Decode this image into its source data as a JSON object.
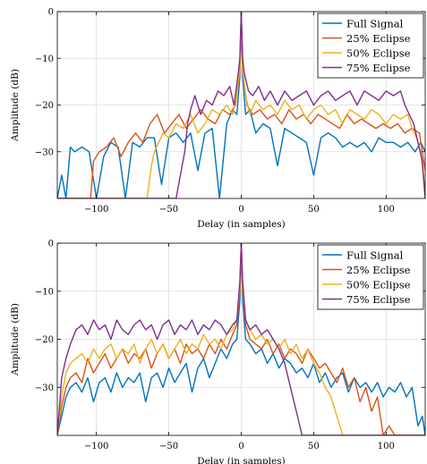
{
  "chart_data": [
    {
      "type": "line",
      "title": "",
      "xlabel": "Delay (in samples)",
      "ylabel": "Amplitude (dB)",
      "xlim": [
        -127,
        127
      ],
      "ylim": [
        -40,
        0
      ],
      "xticks": [
        -100,
        -50,
        0,
        50,
        100
      ],
      "yticks": [
        -30,
        -20,
        -10,
        0
      ],
      "grid": true,
      "legend_position": "top-right",
      "series": [
        {
          "name": "Full Signal",
          "color": "#0072BD",
          "x": [
            -127,
            -124,
            -121,
            -118,
            -115,
            -110,
            -105,
            -100,
            -95,
            -90,
            -85,
            -80,
            -75,
            -70,
            -65,
            -60,
            -55,
            -50,
            -45,
            -40,
            -35,
            -30,
            -25,
            -20,
            -15,
            -10,
            -6,
            -3,
            -1,
            0,
            1,
            3,
            6,
            10,
            15,
            20,
            25,
            30,
            35,
            40,
            45,
            50,
            55,
            60,
            65,
            70,
            75,
            80,
            85,
            90,
            95,
            100,
            105,
            110,
            115,
            120,
            124,
            127
          ],
          "y": [
            -40,
            -35,
            -40,
            -29,
            -30,
            -29,
            -30,
            -40,
            -31,
            -28,
            -29,
            -40,
            -28,
            -29,
            -27,
            -27,
            -37,
            -27,
            -26,
            -28,
            -26,
            -34,
            -26,
            -25,
            -40,
            -24,
            -21,
            -22,
            -14,
            0,
            -14,
            -22,
            -21,
            -26,
            -24,
            -25,
            -33,
            -25,
            -26,
            -27,
            -28,
            -35,
            -27,
            -26,
            -27,
            -29,
            -28,
            -29,
            -28,
            -30,
            -27,
            -28,
            -28,
            -29,
            -28,
            -30,
            -28,
            -30
          ]
        },
        {
          "name": "25% Eclipse",
          "color": "#D95319",
          "x": [
            -127,
            -118,
            -113,
            -108,
            -104,
            -102,
            -98,
            -93,
            -88,
            -83,
            -78,
            -73,
            -68,
            -63,
            -58,
            -53,
            -48,
            -43,
            -38,
            -33,
            -28,
            -23,
            -18,
            -13,
            -8,
            -4,
            -1,
            0,
            1,
            4,
            8,
            13,
            18,
            23,
            28,
            33,
            38,
            43,
            48,
            53,
            58,
            63,
            68,
            73,
            78,
            83,
            88,
            93,
            98,
            103,
            108,
            113,
            118,
            123,
            127
          ],
          "y": [
            -40,
            -40,
            -40,
            -40,
            -40,
            -32,
            -30,
            -29,
            -27,
            -31,
            -28,
            -26,
            -28,
            -24,
            -22,
            -26,
            -24,
            -22,
            -25,
            -23,
            -21,
            -23,
            -24,
            -21,
            -22,
            -20,
            -13,
            0,
            -13,
            -20,
            -22,
            -21,
            -23,
            -22,
            -24,
            -21,
            -23,
            -22,
            -24,
            -22,
            -23,
            -24,
            -25,
            -22,
            -24,
            -23,
            -24,
            -25,
            -24,
            -25,
            -24,
            -26,
            -25,
            -26,
            -34
          ]
        },
        {
          "name": "50% Eclipse",
          "color": "#EDB120",
          "x": [
            -127,
            -110,
            -90,
            -75,
            -68,
            -65,
            -62,
            -60,
            -57,
            -54,
            -50,
            -45,
            -40,
            -35,
            -30,
            -25,
            -20,
            -15,
            -10,
            -6,
            -3,
            -1,
            0,
            1,
            3,
            6,
            10,
            15,
            20,
            25,
            30,
            35,
            40,
            45,
            50,
            55,
            60,
            65,
            70,
            75,
            80,
            85,
            90,
            95,
            100,
            105,
            110,
            115,
            118,
            121,
            124,
            127
          ],
          "y": [
            -40,
            -40,
            -40,
            -40,
            -40,
            -40,
            -33,
            -30,
            -28,
            -26,
            -27,
            -24,
            -25,
            -22,
            -26,
            -24,
            -21,
            -22,
            -20,
            -22,
            -18,
            -12,
            0,
            -12,
            -18,
            -22,
            -19,
            -21,
            -20,
            -22,
            -19,
            -21,
            -20,
            -23,
            -21,
            -20,
            -22,
            -21,
            -24,
            -21,
            -22,
            -23,
            -21,
            -22,
            -24,
            -22,
            -23,
            -22,
            -25,
            -27,
            -30,
            -40
          ]
        },
        {
          "name": "75% Eclipse",
          "color": "#7E2F8E",
          "x": [
            -127,
            -80,
            -45,
            -42,
            -39,
            -37,
            -35,
            -32,
            -28,
            -24,
            -20,
            -16,
            -12,
            -8,
            -5,
            -2,
            -1,
            0,
            1,
            2,
            5,
            8,
            12,
            16,
            20,
            25,
            30,
            35,
            40,
            45,
            50,
            55,
            60,
            65,
            70,
            75,
            80,
            85,
            90,
            95,
            100,
            105,
            110,
            113,
            116,
            119,
            122,
            125,
            127
          ],
          "y": [
            -40,
            -40,
            -40,
            -35,
            -30,
            -24,
            -21,
            -18,
            -22,
            -19,
            -20,
            -17,
            -18,
            -16,
            -20,
            -13,
            -10,
            0,
            -10,
            -13,
            -17,
            -18,
            -16,
            -19,
            -17,
            -20,
            -17,
            -19,
            -18,
            -17,
            -20,
            -18,
            -17,
            -19,
            -18,
            -17,
            -20,
            -17,
            -18,
            -19,
            -17,
            -18,
            -17,
            -20,
            -22,
            -24,
            -28,
            -32,
            -40
          ]
        }
      ]
    },
    {
      "type": "line",
      "title": "",
      "xlabel": "Delay (in samples)",
      "ylabel": "Amplitude (dB)",
      "xlim": [
        -127,
        127
      ],
      "ylim": [
        -40,
        0
      ],
      "xticks": [
        -100,
        -50,
        0,
        50,
        100
      ],
      "yticks": [
        -30,
        -20,
        -10,
        0
      ],
      "grid": true,
      "legend_position": "top-right",
      "series": [
        {
          "name": "Full Signal",
          "color": "#0072BD",
          "x": [
            -127,
            -124,
            -121,
            -118,
            -114,
            -110,
            -106,
            -102,
            -98,
            -94,
            -90,
            -86,
            -82,
            -78,
            -74,
            -70,
            -66,
            -62,
            -58,
            -54,
            -50,
            -46,
            -42,
            -38,
            -34,
            -30,
            -26,
            -22,
            -18,
            -14,
            -10,
            -6,
            -3,
            -1,
            0,
            1,
            3,
            6,
            10,
            14,
            18,
            22,
            26,
            30,
            34,
            38,
            42,
            46,
            50,
            54,
            58,
            62,
            66,
            70,
            74,
            78,
            82,
            86,
            90,
            94,
            98,
            102,
            106,
            110,
            114,
            118,
            122,
            125,
            127
          ],
          "y": [
            -40,
            -36,
            -32,
            -30,
            -29,
            -31,
            -28,
            -33,
            -29,
            -28,
            -31,
            -27,
            -30,
            -28,
            -29,
            -27,
            -33,
            -28,
            -27,
            -30,
            -26,
            -29,
            -27,
            -25,
            -31,
            -26,
            -24,
            -28,
            -25,
            -22,
            -24,
            -21,
            -20,
            -12,
            0,
            -12,
            -20,
            -21,
            -23,
            -22,
            -25,
            -23,
            -26,
            -24,
            -25,
            -27,
            -26,
            -28,
            -25,
            -29,
            -27,
            -30,
            -28,
            -27,
            -31,
            -28,
            -30,
            -29,
            -31,
            -29,
            -32,
            -30,
            -31,
            -29,
            -32,
            -30,
            -38,
            -36,
            -40
          ]
        },
        {
          "name": "25% Eclipse",
          "color": "#D95319",
          "x": [
            -127,
            -124,
            -121,
            -118,
            -114,
            -110,
            -106,
            -102,
            -98,
            -94,
            -90,
            -86,
            -82,
            -78,
            -74,
            -70,
            -66,
            -62,
            -58,
            -54,
            -50,
            -46,
            -42,
            -38,
            -34,
            -30,
            -26,
            -22,
            -18,
            -14,
            -10,
            -6,
            -3,
            -1,
            0,
            1,
            3,
            6,
            10,
            14,
            18,
            22,
            26,
            30,
            34,
            38,
            42,
            46,
            50,
            54,
            58,
            62,
            66,
            70,
            74,
            78,
            82,
            86,
            90,
            94,
            98,
            102,
            106,
            110,
            114,
            118,
            122,
            127
          ],
          "y": [
            -40,
            -34,
            -30,
            -28,
            -27,
            -29,
            -24,
            -27,
            -25,
            -23,
            -26,
            -24,
            -22,
            -25,
            -23,
            -24,
            -22,
            -26,
            -23,
            -21,
            -24,
            -22,
            -25,
            -21,
            -23,
            -22,
            -24,
            -21,
            -23,
            -20,
            -22,
            -19,
            -17,
            -10,
            0,
            -10,
            -17,
            -20,
            -21,
            -22,
            -20,
            -23,
            -21,
            -24,
            -22,
            -23,
            -25,
            -22,
            -24,
            -26,
            -25,
            -27,
            -29,
            -26,
            -30,
            -28,
            -33,
            -30,
            -35,
            -32,
            -40,
            -38,
            -40,
            -40,
            -40,
            -40,
            -40,
            -40
          ]
        },
        {
          "name": "50% Eclipse",
          "color": "#EDB120",
          "x": [
            -127,
            -124,
            -121,
            -118,
            -114,
            -110,
            -106,
            -102,
            -98,
            -94,
            -90,
            -86,
            -82,
            -78,
            -74,
            -70,
            -66,
            -62,
            -58,
            -54,
            -50,
            -46,
            -42,
            -38,
            -34,
            -30,
            -26,
            -22,
            -18,
            -14,
            -10,
            -6,
            -3,
            -1,
            0,
            1,
            3,
            6,
            10,
            14,
            18,
            22,
            26,
            30,
            34,
            38,
            42,
            46,
            50,
            54,
            58,
            62,
            66,
            70,
            74,
            78,
            82,
            86,
            127
          ],
          "y": [
            -40,
            -32,
            -27,
            -25,
            -24,
            -23,
            -25,
            -22,
            -24,
            -22,
            -21,
            -24,
            -22,
            -23,
            -21,
            -25,
            -22,
            -20,
            -23,
            -21,
            -24,
            -22,
            -20,
            -23,
            -21,
            -22,
            -19,
            -21,
            -20,
            -22,
            -19,
            -18,
            -16,
            -9,
            0,
            -9,
            -16,
            -18,
            -20,
            -19,
            -21,
            -20,
            -22,
            -20,
            -23,
            -21,
            -24,
            -22,
            -25,
            -27,
            -30,
            -32,
            -36,
            -40,
            -40,
            -40,
            -40,
            -40,
            -40
          ]
        },
        {
          "name": "75% Eclipse",
          "color": "#7E2F8E",
          "x": [
            -127,
            -124,
            -121,
            -118,
            -114,
            -110,
            -106,
            -102,
            -98,
            -94,
            -90,
            -86,
            -82,
            -78,
            -74,
            -70,
            -66,
            -62,
            -58,
            -54,
            -50,
            -46,
            -42,
            -38,
            -34,
            -30,
            -26,
            -22,
            -18,
            -14,
            -10,
            -6,
            -3,
            -1,
            0,
            1,
            3,
            6,
            10,
            14,
            18,
            22,
            26,
            30,
            34,
            38,
            42,
            46,
            50,
            54,
            58,
            127
          ],
          "y": [
            -40,
            -28,
            -24,
            -21,
            -18,
            -17,
            -19,
            -16,
            -18,
            -17,
            -20,
            -16,
            -18,
            -19,
            -17,
            -16,
            -18,
            -17,
            -20,
            -17,
            -16,
            -19,
            -17,
            -18,
            -16,
            -19,
            -17,
            -18,
            -16,
            -17,
            -19,
            -17,
            -16,
            -8,
            0,
            -8,
            -16,
            -18,
            -17,
            -19,
            -18,
            -20,
            -22,
            -25,
            -30,
            -35,
            -40,
            -40,
            -40,
            -40,
            -40,
            -40
          ]
        }
      ]
    }
  ]
}
